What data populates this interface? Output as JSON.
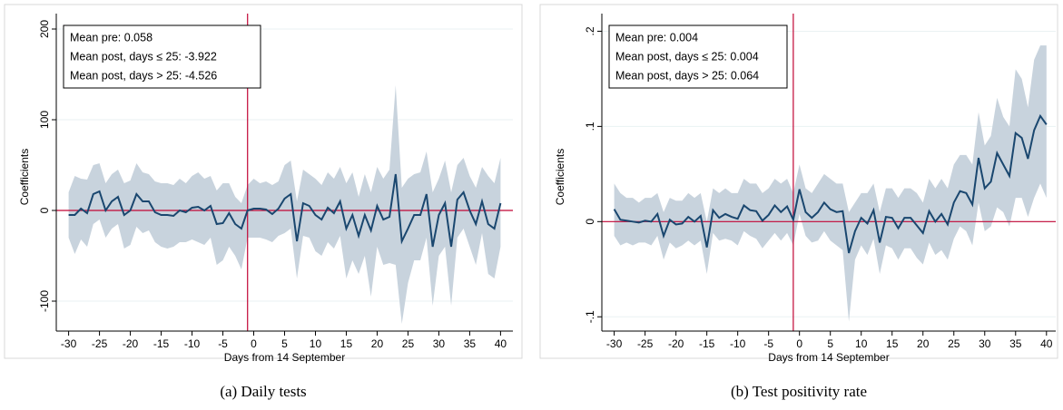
{
  "chart_data": [
    {
      "type": "line",
      "caption": "(a) Daily tests",
      "xlabel": "Days from 14 September",
      "ylabel": "Coefficients",
      "annotations": [
        "Mean pre: 0.058",
        "Mean post, days ≤ 25: -3.922",
        "Mean post, days > 25: -4.526"
      ],
      "x": [
        -30,
        -29,
        -28,
        -27,
        -26,
        -25,
        -24,
        -23,
        -22,
        -21,
        -20,
        -19,
        -18,
        -17,
        -16,
        -15,
        -14,
        -13,
        -12,
        -11,
        -10,
        -9,
        -8,
        -7,
        -6,
        -5,
        -4,
        -3,
        -2,
        -1,
        0,
        1,
        2,
        3,
        4,
        5,
        6,
        7,
        8,
        9,
        10,
        11,
        12,
        13,
        14,
        15,
        16,
        17,
        18,
        19,
        20,
        21,
        22,
        23,
        24,
        25,
        26,
        27,
        28,
        29,
        30,
        31,
        32,
        33,
        34,
        35,
        36,
        37,
        38,
        39,
        40
      ],
      "values": [
        -5,
        -5,
        2,
        -3,
        18,
        21,
        0,
        10,
        15,
        -5,
        0,
        18,
        10,
        10,
        -2,
        -5,
        -5,
        -6,
        0,
        -2,
        3,
        4,
        0,
        5,
        -15,
        -14,
        -3,
        -15,
        -20,
        0,
        2,
        2,
        1,
        -4,
        2,
        13,
        18,
        -34,
        8,
        5,
        -5,
        -10,
        3,
        -3,
        10,
        -20,
        -5,
        -28,
        -5,
        -22,
        5,
        -10,
        -7,
        40,
        -34,
        -20,
        -5,
        -5,
        18,
        -40,
        -5,
        8,
        -40,
        12,
        20,
        0,
        -15,
        10,
        -15,
        -20,
        8
      ],
      "ci_upper": [
        20,
        38,
        35,
        34,
        50,
        52,
        30,
        40,
        45,
        30,
        33,
        52,
        42,
        40,
        32,
        30,
        30,
        28,
        35,
        30,
        38,
        42,
        35,
        38,
        22,
        30,
        30,
        15,
        8,
        28,
        35,
        30,
        32,
        28,
        32,
        50,
        55,
        10,
        45,
        40,
        35,
        28,
        42,
        35,
        48,
        30,
        42,
        15,
        40,
        20,
        48,
        35,
        45,
        138,
        25,
        35,
        40,
        42,
        65,
        20,
        35,
        55,
        20,
        50,
        58,
        38,
        25,
        48,
        38,
        30,
        58
      ],
      "ci_lower": [
        -30,
        -48,
        -32,
        -40,
        -15,
        -10,
        -30,
        -20,
        -15,
        -42,
        -38,
        -18,
        -25,
        -22,
        -35,
        -40,
        -42,
        -40,
        -35,
        -35,
        -32,
        -35,
        -38,
        -30,
        -60,
        -55,
        -40,
        -50,
        -65,
        -30,
        -30,
        -30,
        -32,
        -35,
        -28,
        -25,
        -20,
        -75,
        -28,
        -30,
        -45,
        -50,
        -35,
        -42,
        -28,
        -75,
        -55,
        -70,
        -50,
        -95,
        -40,
        -60,
        -58,
        -60,
        -125,
        -80,
        -55,
        -55,
        -30,
        -105,
        -50,
        -40,
        -105,
        -30,
        -20,
        -40,
        -60,
        -25,
        -70,
        -75,
        -40
      ],
      "color": "#1a476f",
      "band_color": "#c8d3dd",
      "ref_color": "#c10534",
      "vline": -1,
      "hline": 0,
      "xlim": [
        -32,
        42
      ],
      "ylim": [
        -133,
        207
      ],
      "xticks": [
        -30,
        -25,
        -20,
        -15,
        -10,
        -5,
        0,
        5,
        10,
        15,
        20,
        25,
        30,
        35,
        40
      ],
      "yticks": [
        -100,
        0,
        100,
        200
      ],
      "grid": true
    },
    {
      "type": "line",
      "caption": "(b) Test positivity rate",
      "xlabel": "Days from 14 September",
      "ylabel": "Coefficients",
      "annotations": [
        "Mean pre: 0.004",
        "Mean post, days ≤ 25: 0.004",
        "Mean post, days > 25: 0.064"
      ],
      "x": [
        -30,
        -29,
        -28,
        -27,
        -26,
        -25,
        -24,
        -23,
        -22,
        -21,
        -20,
        -19,
        -18,
        -17,
        -16,
        -15,
        -14,
        -13,
        -12,
        -11,
        -10,
        -9,
        -8,
        -7,
        -6,
        -5,
        -4,
        -3,
        -2,
        -1,
        0,
        1,
        2,
        3,
        4,
        5,
        6,
        7,
        8,
        9,
        10,
        11,
        12,
        13,
        14,
        15,
        16,
        17,
        18,
        19,
        20,
        21,
        22,
        23,
        24,
        25,
        26,
        27,
        28,
        29,
        30,
        31,
        32,
        33,
        34,
        35,
        36,
        37,
        38,
        39,
        40
      ],
      "values": [
        0.013,
        0.002,
        0.001,
        0,
        -0.001,
        0.001,
        0,
        0.008,
        -0.015,
        0.002,
        -0.003,
        -0.002,
        0.005,
        0,
        0.006,
        -0.027,
        0.012,
        0.004,
        0.008,
        0.005,
        0.003,
        0.017,
        0.012,
        0.011,
        0.001,
        0.007,
        0.017,
        0.01,
        0.016,
        0.002,
        0.034,
        0.01,
        0.004,
        0.01,
        0.02,
        0.013,
        0.01,
        0.011,
        -0.033,
        -0.01,
        0.004,
        -0.002,
        0.012,
        -0.022,
        0.005,
        0.004,
        -0.007,
        0.004,
        0.004,
        -0.004,
        -0.012,
        0.011,
        0,
        0.008,
        -0.003,
        0.02,
        0.032,
        0.03,
        0.018,
        0.067,
        0.035,
        0.042,
        0.072,
        0.06,
        0.048,
        0.093,
        0.088,
        0.066,
        0.096,
        0.111,
        0.102
      ],
      "ci_upper": [
        0.04,
        0.03,
        0.025,
        0.025,
        0.02,
        0.025,
        0.025,
        0.03,
        0.01,
        0.025,
        0.022,
        0.022,
        0.03,
        0.025,
        0.03,
        0,
        0.035,
        0.03,
        0.035,
        0.03,
        0.03,
        0.045,
        0.04,
        0.04,
        0.03,
        0.035,
        0.045,
        0.04,
        0.045,
        0.03,
        0.06,
        0.035,
        0.03,
        0.04,
        0.05,
        0.045,
        0.04,
        0.04,
        0.01,
        0.02,
        0.03,
        0.03,
        0.04,
        0.01,
        0.035,
        0.035,
        0.025,
        0.035,
        0.035,
        0.03,
        0.02,
        0.045,
        0.035,
        0.045,
        0.035,
        0.06,
        0.07,
        0.07,
        0.06,
        0.115,
        0.08,
        0.09,
        0.13,
        0.11,
        0.1,
        0.16,
        0.15,
        0.12,
        0.17,
        0.185,
        0.185
      ],
      "ci_lower": [
        -0.015,
        -0.025,
        -0.022,
        -0.025,
        -0.022,
        -0.022,
        -0.025,
        -0.015,
        -0.04,
        -0.022,
        -0.028,
        -0.025,
        -0.02,
        -0.025,
        -0.02,
        -0.055,
        -0.012,
        -0.02,
        -0.018,
        -0.02,
        -0.025,
        -0.01,
        -0.015,
        -0.018,
        -0.028,
        -0.02,
        -0.012,
        -0.02,
        -0.012,
        -0.025,
        0.008,
        -0.015,
        -0.022,
        -0.02,
        -0.01,
        -0.02,
        -0.025,
        -0.03,
        -0.105,
        -0.04,
        -0.025,
        -0.035,
        -0.018,
        -0.055,
        -0.025,
        -0.028,
        -0.04,
        -0.028,
        -0.028,
        -0.038,
        -0.045,
        -0.022,
        -0.035,
        -0.03,
        -0.04,
        -0.018,
        -0.005,
        -0.01,
        -0.025,
        0.02,
        -0.01,
        -0.005,
        0.015,
        0.01,
        -0.005,
        0.025,
        0.025,
        0.005,
        0.025,
        0.04,
        0.025
      ],
      "color": "#1a476f",
      "band_color": "#c8d3dd",
      "ref_color": "#c10534",
      "vline": -1,
      "hline": 0,
      "xlim": [
        -32,
        41.5
      ],
      "ylim": [
        -0.115,
        0.209
      ],
      "xticks": [
        -30,
        -25,
        -20,
        -15,
        -10,
        -5,
        0,
        5,
        10,
        15,
        20,
        25,
        30,
        35,
        40
      ],
      "yticks": [
        {
          "value": -0.1,
          "label": "-.1"
        },
        0,
        {
          "value": 0.1,
          "label": ".1"
        },
        {
          "value": 0.2,
          "label": ".2"
        }
      ],
      "grid": true
    }
  ]
}
